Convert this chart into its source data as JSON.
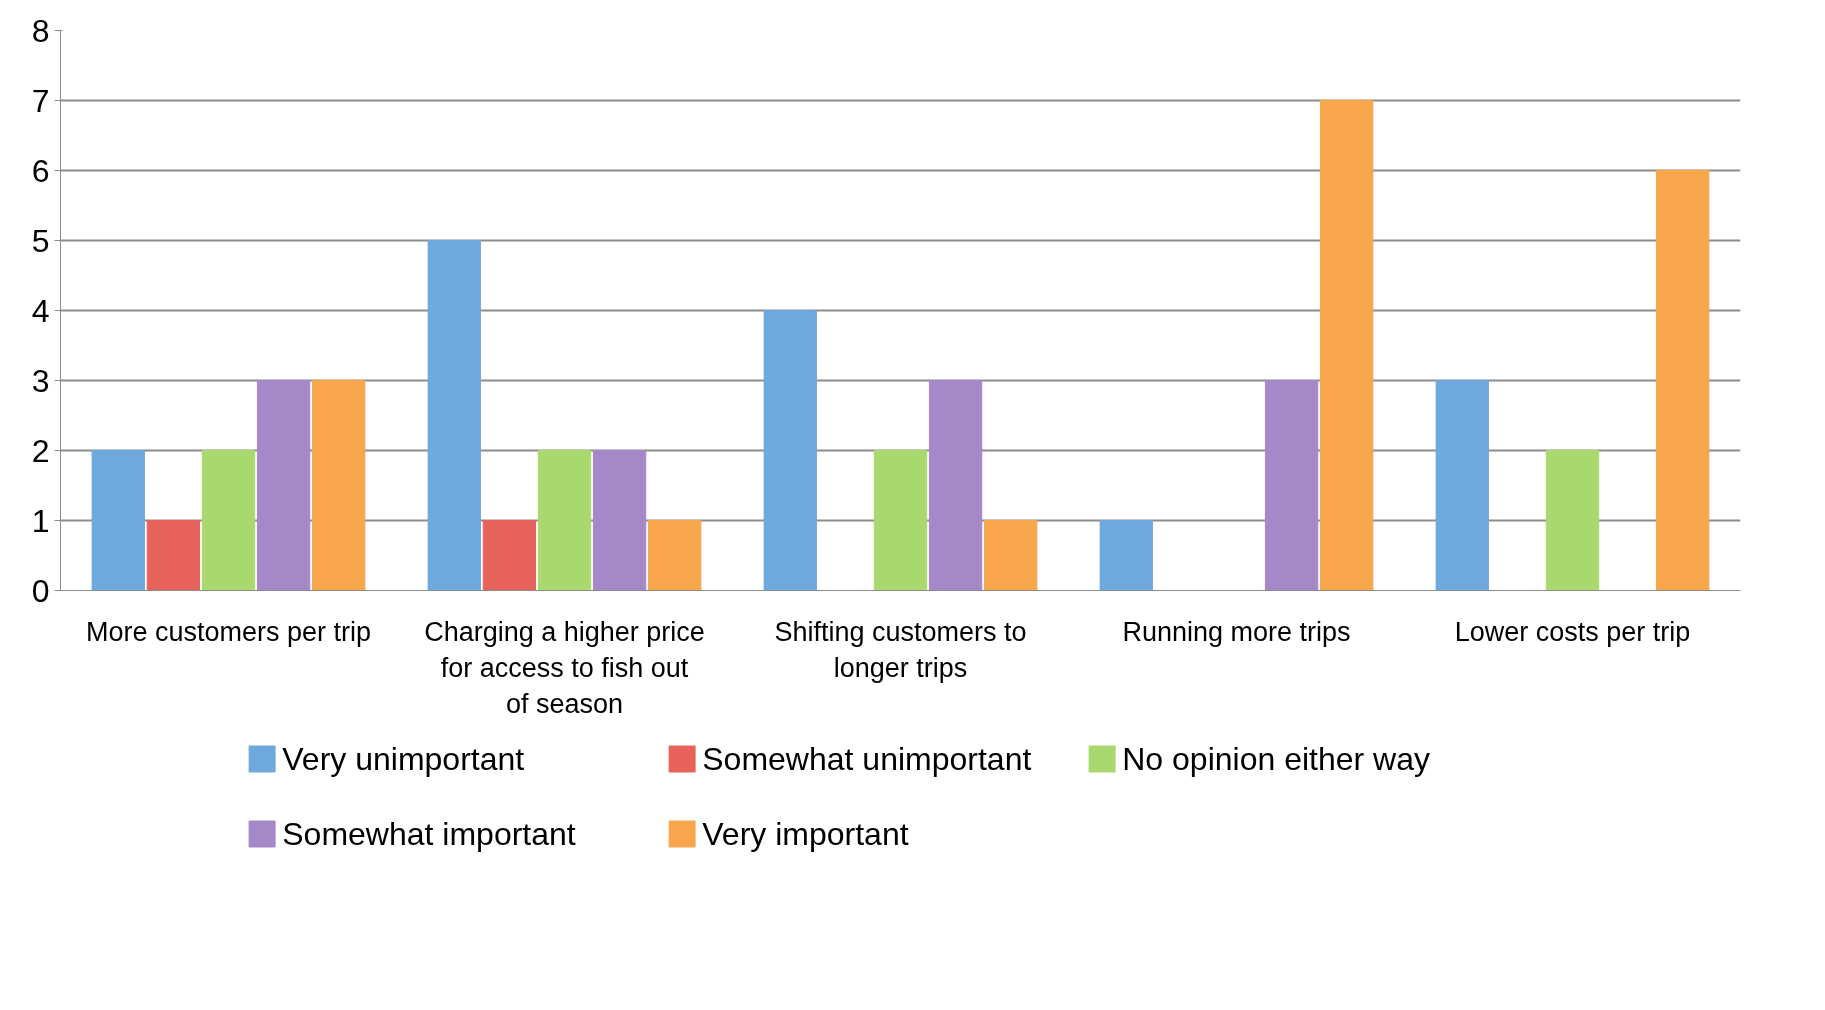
{
  "chart_data": {
    "type": "bar",
    "categories": [
      "More customers per trip",
      "Charging a higher price for access to fish out of season",
      "Shifting customers to longer trips",
      "Running more trips",
      "Lower costs per trip"
    ],
    "series": [
      {
        "name": "Very unimportant",
        "color": "#6fa8dc",
        "values": [
          2,
          5,
          4,
          1,
          3
        ]
      },
      {
        "name": "Somewhat unimportant",
        "color": "#e8625c",
        "values": [
          1,
          1,
          null,
          null,
          null
        ]
      },
      {
        "name": "No opinion either way",
        "color": "#a9d86e",
        "values": [
          2,
          2,
          2,
          null,
          2
        ]
      },
      {
        "name": "Somewhat important",
        "color": "#a687c8",
        "values": [
          3,
          2,
          3,
          3,
          null
        ]
      },
      {
        "name": "Very important",
        "color": "#f7a64c",
        "values": [
          3,
          1,
          1,
          7,
          6
        ]
      }
    ],
    "ylim": [
      0,
      8
    ],
    "yticks": [
      0,
      1,
      2,
      3,
      4,
      5,
      6,
      7,
      8
    ],
    "grid": "y",
    "legend": "bottom"
  }
}
